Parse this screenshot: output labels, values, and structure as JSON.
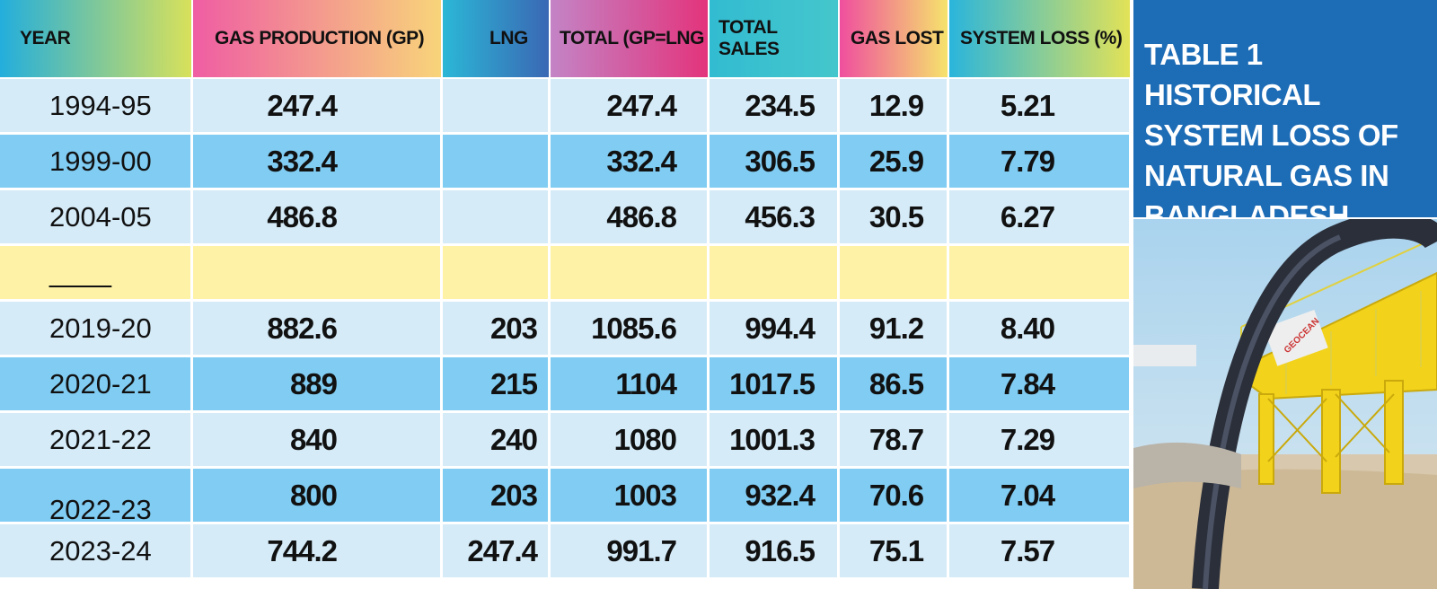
{
  "table": {
    "headers": [
      "YEAR",
      "GAS PRODUCTION (GP)",
      "LNG",
      "TOTAL (GP=LNG",
      "TOTAL SALES",
      "GAS LOST",
      "SYSTEM LOSS (%)"
    ],
    "rows": [
      [
        "1994-95",
        "247.4",
        null,
        "247.4",
        "234.5",
        "12.9",
        "5.21"
      ],
      [
        "1999-00",
        "332.4",
        null,
        "332.4",
        "306.5",
        "25.9",
        "7.79"
      ],
      [
        "2004-05",
        "486.8",
        null,
        "486.8",
        "456.3",
        "30.5",
        "6.27"
      ],
      [
        "____",
        null,
        null,
        null,
        null,
        null,
        null
      ],
      [
        "2019-20",
        "882.6",
        "203",
        "1085.6",
        "994.4",
        "91.2",
        "8.40"
      ],
      [
        "2020-21",
        "889",
        "215",
        "1104",
        "1017.5",
        "86.5",
        "7.84"
      ],
      [
        "2021-22",
        "840",
        "240",
        "1080",
        "1001.3",
        "78.7",
        "7.29"
      ],
      [
        "2022-23",
        "800",
        "203",
        "1003",
        "932.4",
        "70.6",
        "7.04"
      ],
      [
        "2023-24",
        "744.2",
        "247.4",
        "991.7",
        "916.5",
        "75.1",
        "7.57"
      ]
    ]
  },
  "panel": {
    "title_lines": [
      "TABLE 1  HISTORICAL",
      "SYSTEM LOSS OF",
      "NATURAL GAS IN",
      "BANGLADESH"
    ]
  },
  "photo": {
    "sign": "GEOCEAN"
  }
}
